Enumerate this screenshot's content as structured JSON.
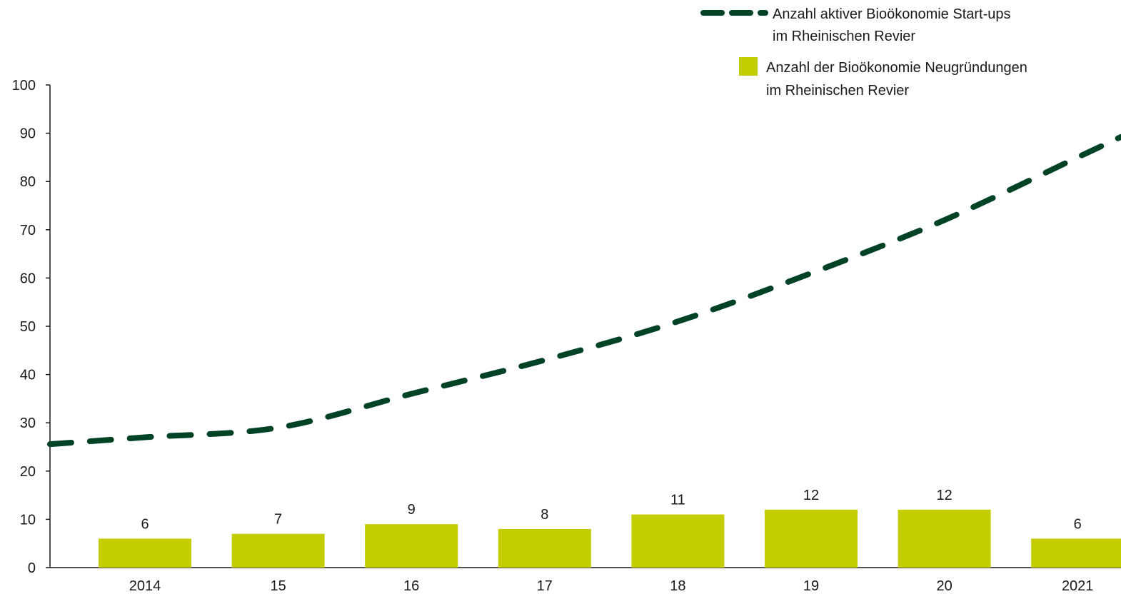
{
  "chart_data": {
    "type": "bar",
    "title": "",
    "xlabel": "",
    "ylabel": "",
    "categories": [
      "2014",
      "15",
      "16",
      "17",
      "18",
      "19",
      "20",
      "2021"
    ],
    "ylim": [
      0,
      100
    ],
    "yticks": [
      0,
      10,
      20,
      30,
      40,
      50,
      60,
      70,
      80,
      90,
      100
    ],
    "grid": false,
    "legend_position": "top-right",
    "series": [
      {
        "name": "Anzahl aktiver Bioökonomie Start-ups im Rheinischen Revier",
        "legend_lines": [
          "Anzahl aktiver Bioökonomie Start-ups",
          "im Rheinischen Revier"
        ],
        "type": "line",
        "style": "dashed",
        "color": "#004225",
        "values": [
          27,
          29,
          36,
          43,
          51,
          61,
          72,
          85
        ]
      },
      {
        "name": "Anzahl der Bioökonomie Neugründungen im Rheinischen Revier",
        "legend_lines": [
          "Anzahl der Bioökonomie Neugründungen",
          "im Rheinischen Revier"
        ],
        "type": "bar",
        "color": "#c3cd00",
        "values": [
          6,
          7,
          9,
          8,
          11,
          12,
          12,
          6
        ],
        "labels": [
          "6",
          "7",
          "9",
          "8",
          "11",
          "12",
          "12",
          "6"
        ]
      }
    ]
  }
}
